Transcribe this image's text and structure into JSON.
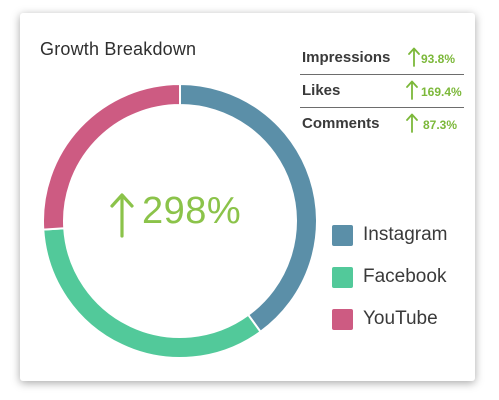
{
  "title": "Growth Breakdown",
  "stats": [
    {
      "label": "Impressions",
      "value": "93.8%"
    },
    {
      "label": "Likes",
      "value": "169.4%"
    },
    {
      "label": "Comments",
      "value": "87.3%"
    }
  ],
  "center_value": "298%",
  "colors": {
    "instagram": "#5b8fa8",
    "facebook": "#52c99a",
    "youtube": "#cd5b82",
    "growth_green": "#7cb83a"
  },
  "icons": {
    "growth_arrow": "arrow-up-icon"
  },
  "chart_data": {
    "type": "pie",
    "style": "donut",
    "categories": [
      "Instagram",
      "Facebook",
      "YouTube"
    ],
    "values": [
      40,
      34,
      26
    ],
    "colors": [
      "#5b8fa8",
      "#52c99a",
      "#cd5b82"
    ],
    "legend": "right",
    "center_label": "298%"
  }
}
